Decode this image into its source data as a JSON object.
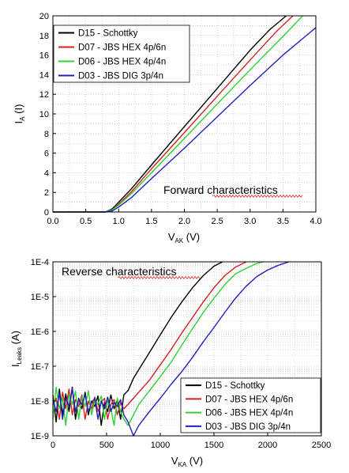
{
  "chart_data": [
    {
      "type": "line",
      "title": "",
      "annotation": "Forward characteristics",
      "xlabel": {
        "main": "V",
        "sub": "AK",
        "unit": " (V)"
      },
      "ylabel": {
        "main": "I",
        "sub": "A",
        "unit": " (I)"
      },
      "xlim": [
        0,
        4.0
      ],
      "ylim": [
        0,
        20
      ],
      "xticks": [
        "0.0",
        "0.5",
        "1.0",
        "1.5",
        "2.0",
        "2.5",
        "3.0",
        "3.5",
        "4.0"
      ],
      "yticks": [
        "0",
        "2",
        "4",
        "6",
        "8",
        "10",
        "12",
        "14",
        "16",
        "18",
        "20"
      ],
      "grid": true,
      "legend_position": "top-left",
      "series": [
        {
          "name": "D15 - Schottky",
          "color": "#000000",
          "x": [
            0.0,
            0.8,
            0.9,
            1.0,
            1.2,
            1.5,
            2.0,
            2.5,
            3.0,
            3.3,
            3.55
          ],
          "y": [
            0,
            0,
            0.3,
            1.0,
            2.4,
            4.8,
            8.7,
            12.6,
            16.5,
            18.6,
            20
          ]
        },
        {
          "name": "D07 - JBS HEX 4p/6n",
          "color": "#d42020",
          "x": [
            0.0,
            0.8,
            0.9,
            1.0,
            1.2,
            1.5,
            2.0,
            2.5,
            3.0,
            3.4,
            3.65
          ],
          "y": [
            0,
            0,
            0.2,
            0.8,
            2.1,
            4.4,
            8.1,
            11.8,
            15.5,
            18.4,
            20
          ]
        },
        {
          "name": "D06 - JBS HEX 4p/4n",
          "color": "#30d030",
          "x": [
            0.0,
            0.8,
            0.9,
            1.0,
            1.2,
            1.5,
            2.0,
            2.5,
            3.0,
            3.5,
            3.8
          ],
          "y": [
            0,
            0,
            0.2,
            0.7,
            1.9,
            4.0,
            7.5,
            11.0,
            14.5,
            17.9,
            20
          ]
        },
        {
          "name": "D03 - JBS DIG 3p/4n",
          "color": "#2020c0",
          "x": [
            0.0,
            0.8,
            0.9,
            1.0,
            1.2,
            1.5,
            2.0,
            2.5,
            3.0,
            3.5,
            4.0
          ],
          "y": [
            0,
            0,
            0.1,
            0.5,
            1.5,
            3.4,
            6.5,
            9.7,
            12.9,
            16.0,
            18.8
          ]
        }
      ]
    },
    {
      "type": "line",
      "title": "",
      "annotation": "Reverse characteristics",
      "xlabel": {
        "main": "V",
        "sub": "KA",
        "unit": " (V)"
      },
      "ylabel": {
        "main": "I",
        "sub": "Leaks",
        "unit": " (A)"
      },
      "xlim": [
        0,
        2500
      ],
      "ylim": [
        1e-09,
        0.0001
      ],
      "yscale": "log",
      "xticks": [
        "0",
        "500",
        "1000",
        "1500",
        "2000",
        "2500"
      ],
      "yticks": [
        "1E-9",
        "1E-8",
        "1E-7",
        "1E-6",
        "1E-5",
        "1E-4"
      ],
      "grid": true,
      "legend_position": "bottom-right",
      "series": [
        {
          "name": "D15 - Schottky",
          "color": "#000000",
          "x": [
            0,
            30,
            60,
            90,
            120,
            150,
            180,
            210,
            240,
            270,
            300,
            330,
            360,
            390,
            420,
            450,
            480,
            510,
            540,
            570,
            600,
            630,
            660,
            700,
            750,
            800,
            900,
            1000,
            1100,
            1200,
            1300,
            1400,
            1500,
            1580
          ],
          "y": [
            1.5e-08,
            2.5e-09,
            2.2e-08,
            4e-09,
            1.6e-08,
            5e-09,
            2.5e-08,
            3e-09,
            1.2e-08,
            6e-09,
            1.8e-08,
            4e-09,
            1e-08,
            7e-09,
            1.4e-08,
            2e-09,
            9e-09,
            5e-09,
            1.5e-08,
            6e-09,
            1.1e-08,
            3e-09,
            1.5e-08,
            2e-08,
            4.5e-08,
            8e-08,
            2.5e-07,
            8e-07,
            2.5e-06,
            7e-06,
            1.8e-05,
            4e-05,
            7.5e-05,
            0.0001
          ]
        },
        {
          "name": "D07 - JBS HEX 4p/6n",
          "color": "#d42020",
          "x": [
            0,
            30,
            60,
            90,
            120,
            150,
            180,
            210,
            240,
            270,
            300,
            330,
            360,
            390,
            420,
            450,
            480,
            510,
            540,
            570,
            600,
            630,
            660,
            700,
            750,
            800,
            900,
            1000,
            1100,
            1200,
            1300,
            1400,
            1500,
            1600,
            1700,
            1800
          ],
          "y": [
            8e-09,
            1.2e-08,
            3e-09,
            1.8e-08,
            6e-09,
            2.2e-08,
            4e-09,
            1.1e-08,
            7e-09,
            1.5e-08,
            3e-09,
            1e-08,
            6e-09,
            1.3e-08,
            5e-09,
            9e-09,
            1.2e-08,
            3e-09,
            8e-09,
            1.1e-08,
            4e-09,
            9e-09,
            6e-09,
            8e-09,
            1.2e-08,
            1.8e-08,
            4e-08,
            1.1e-07,
            3e-07,
            9e-07,
            2.5e-06,
            7e-06,
            1.8e-05,
            4e-05,
            7e-05,
            0.0001
          ]
        },
        {
          "name": "D06 - JBS HEX 4p/4n",
          "color": "#30d030",
          "x": [
            0,
            30,
            60,
            90,
            120,
            150,
            180,
            210,
            240,
            270,
            300,
            330,
            360,
            390,
            420,
            450,
            480,
            510,
            540,
            570,
            600,
            630,
            660,
            700,
            750,
            800,
            900,
            1000,
            1100,
            1200,
            1300,
            1400,
            1500,
            1600,
            1700,
            1800,
            1900,
            1960
          ],
          "y": [
            3e-09,
            2.5e-08,
            6e-09,
            1.2e-08,
            2e-09,
            1.6e-08,
            8e-09,
            1.9e-08,
            3e-09,
            1.3e-08,
            7e-09,
            2e-08,
            4e-09,
            1.1e-08,
            8e-09,
            1.4e-08,
            3e-09,
            1e-08,
            6e-09,
            2e-09,
            1.2e-08,
            5e-09,
            3e-09,
            2e-09,
            4e-09,
            8e-09,
            2e-08,
            5e-08,
            1.3e-07,
            4e-07,
            1.2e-06,
            3.5e-06,
            9e-06,
            2.2e-05,
            4.5e-05,
            6.5e-05,
            9e-05,
            0.0001
          ]
        },
        {
          "name": "D03 - JBS DIG 3p/4n",
          "color": "#2020c0",
          "x": [
            0,
            30,
            60,
            90,
            120,
            150,
            180,
            210,
            240,
            270,
            300,
            330,
            360,
            390,
            420,
            450,
            480,
            510,
            540,
            570,
            600,
            630,
            660,
            700,
            750,
            800,
            900,
            1000,
            1100,
            1200,
            1300,
            1400,
            1500,
            1600,
            1700,
            1800,
            1900,
            2000,
            2100,
            2200
          ],
          "y": [
            1.1e-08,
            5e-09,
            1.7e-08,
            3e-09,
            1.2e-08,
            7e-09,
            2.3e-08,
            5e-09,
            1.1e-08,
            8e-09,
            1.5e-08,
            5e-09,
            9e-09,
            1.2e-08,
            3e-09,
            1e-08,
            6e-09,
            1.3e-08,
            5e-09,
            9e-09,
            7e-09,
            1.1e-08,
            4e-09,
            2.5e-09,
            1e-09,
            2e-09,
            5e-09,
            1.2e-08,
            3e-08,
            7e-08,
            1.8e-07,
            5e-07,
            1.3e-06,
            3.5e-06,
            9e-06,
            2e-05,
            3.8e-05,
            5.8e-05,
            8e-05,
            0.0001
          ]
        }
      ]
    }
  ]
}
